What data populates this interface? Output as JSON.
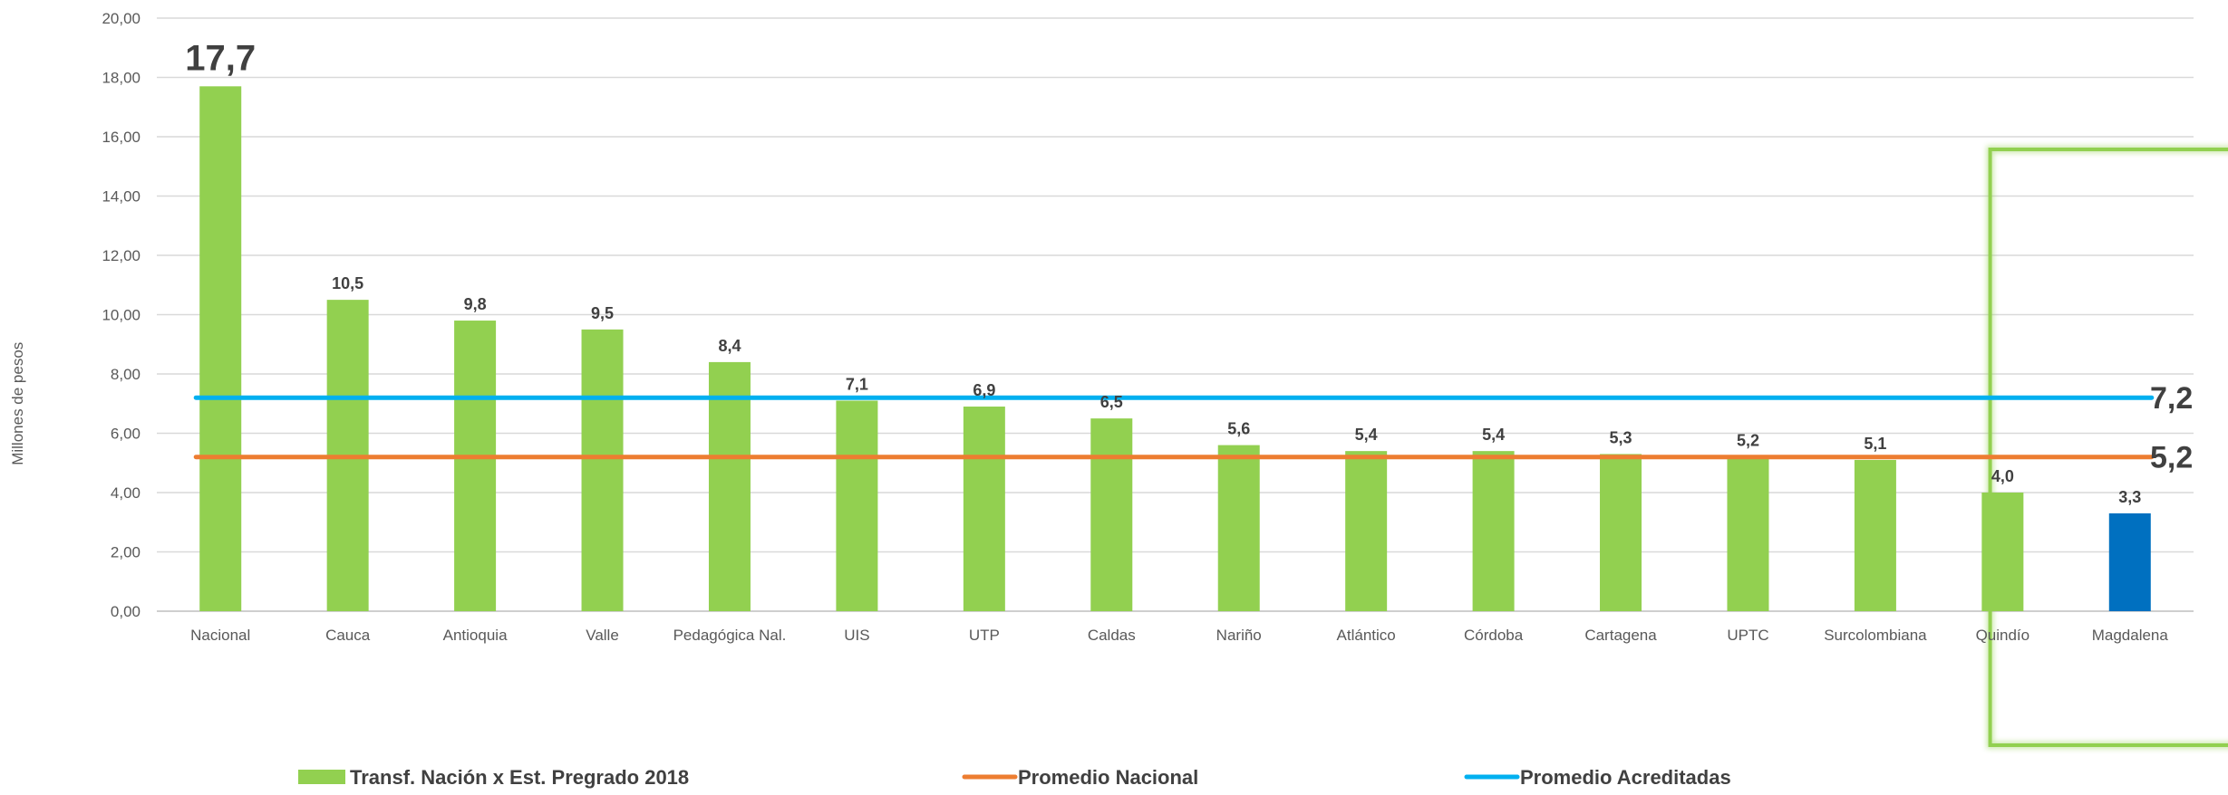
{
  "chart_data": {
    "type": "bar",
    "ylabel": "Millones de pesos",
    "ylim": [
      0,
      20
    ],
    "ytick_step": 2,
    "ytick_labels": [
      "0,00",
      "2,00",
      "4,00",
      "6,00",
      "8,00",
      "10,00",
      "12,00",
      "14,00",
      "16,00",
      "18,00",
      "20,00"
    ],
    "grid": true,
    "legend_position": "bottom",
    "categories": [
      "Nacional",
      "Cauca",
      "Antioquia",
      "Valle",
      "Pedagógica Nal.",
      "UIS",
      "UTP",
      "Caldas",
      "Nariño",
      "Atlántico",
      "Córdoba",
      "Cartagena",
      "UPTC",
      "Surcolombiana",
      "Quindío",
      "Magdalena"
    ],
    "series": [
      {
        "name": "Transf. Nación x Est. Pregrado 2018",
        "values": [
          17.7,
          10.5,
          9.8,
          9.5,
          8.4,
          7.1,
          6.9,
          6.5,
          5.6,
          5.4,
          5.4,
          5.3,
          5.2,
          5.1,
          4.0,
          3.3
        ],
        "labels": [
          "17,7",
          "10,5",
          "9,8",
          "9,5",
          "8,4",
          "7,1",
          "6,9",
          "6,5",
          "5,6",
          "5,4",
          "5,4",
          "5,3",
          "5,2",
          "5,1",
          "4,0",
          "3,3"
        ],
        "color": "#92d050",
        "highlight_index": 15,
        "highlight_color": "#0070c0"
      }
    ],
    "reference_lines": [
      {
        "name": "Promedio Nacional",
        "value": 5.2,
        "label": "5,2",
        "color": "#ed7d31"
      },
      {
        "name": "Promedio Acreditadas",
        "value": 7.2,
        "label": "7,2",
        "color": "#00b0f0"
      }
    ],
    "highlight_box_color": "#92d050"
  }
}
